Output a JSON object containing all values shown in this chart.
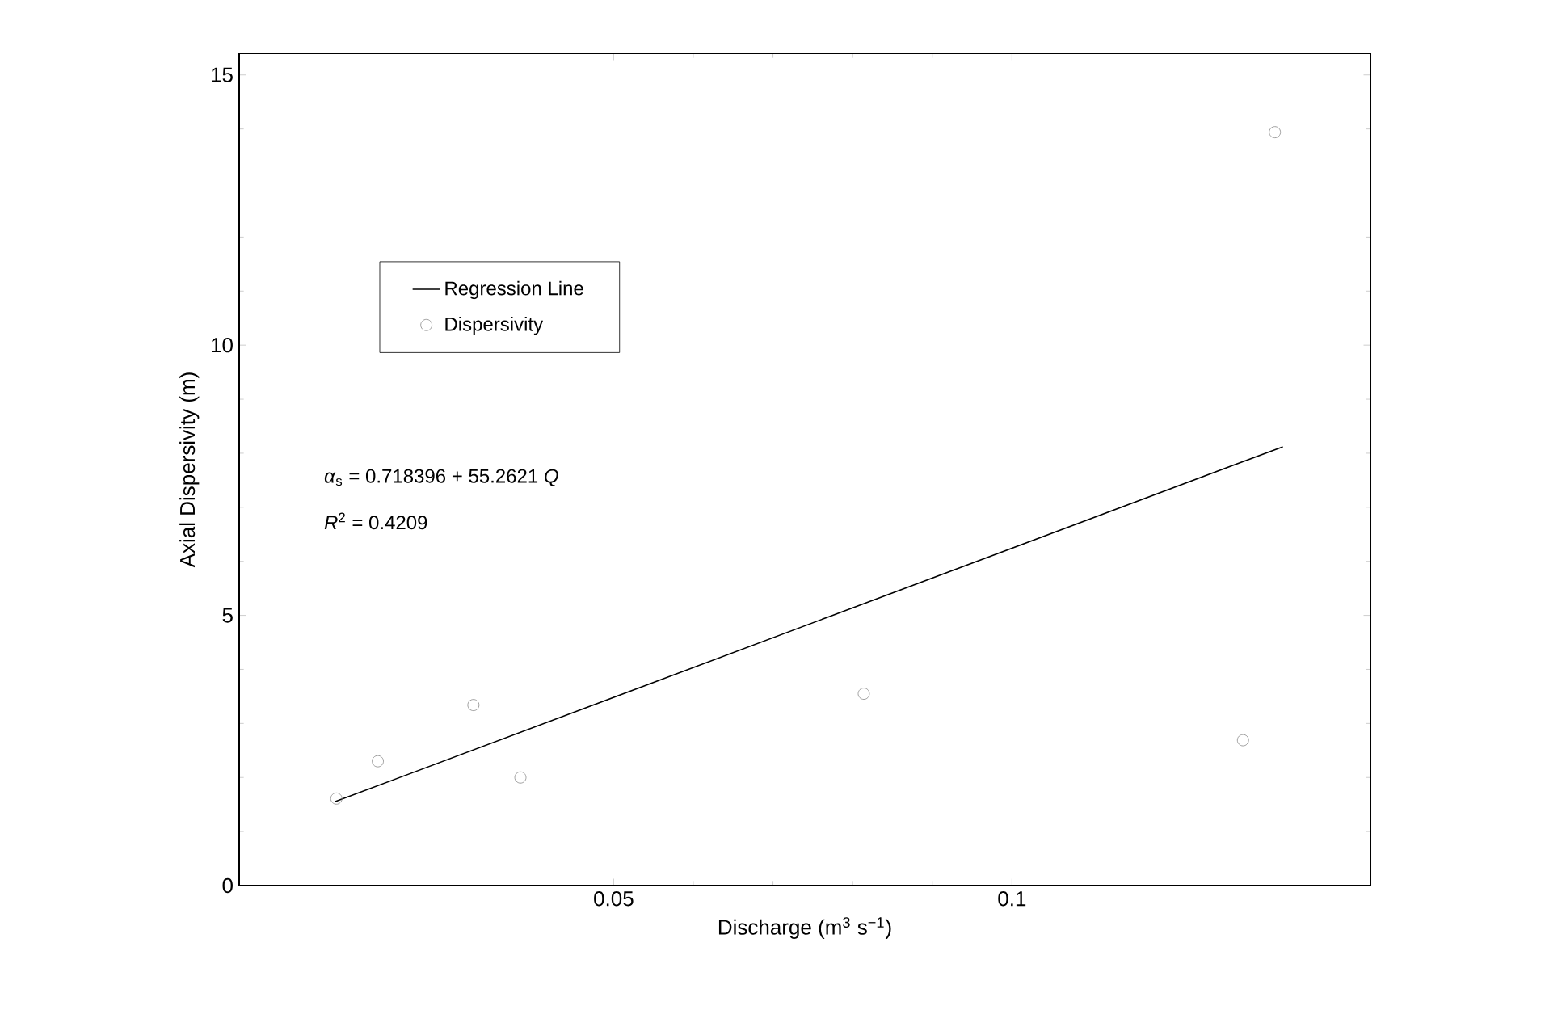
{
  "chart_data": {
    "type": "scatter",
    "xlabel": "Discharge (m$^{3}$ s$^{−1}$)",
    "ylabel": "Axial Dispersivity (m)",
    "xlim": [
      0.003,
      0.145
    ],
    "xticks": [
      0.05,
      0.1
    ],
    "ylim": [
      0,
      15.4
    ],
    "yticks": [
      0,
      5,
      10,
      15
    ],
    "grid": false,
    "legend": "top left",
    "annotations": [
      "*α*$_{s}$ = 0.718396 + 55.2621 *Q*",
      "*R*$^{2}$ = 0.4209"
    ],
    "series": [
      {
        "name": "Regression Line",
        "type": "line",
        "color": "#000000",
        "marker": "none",
        "line_style": "solid",
        "x": [
          0.015,
          0.134
        ],
        "values": [
          1.55,
          8.12
        ]
      },
      {
        "name": "Dispersivity",
        "color": "#888888",
        "marker": "circle",
        "x": [
          0.0152,
          0.0204,
          0.0324,
          0.0383,
          0.0814,
          0.129,
          0.133
        ],
        "values": [
          1.61,
          2.3,
          3.34,
          2.0,
          3.55,
          2.69,
          13.94
        ]
      }
    ]
  }
}
